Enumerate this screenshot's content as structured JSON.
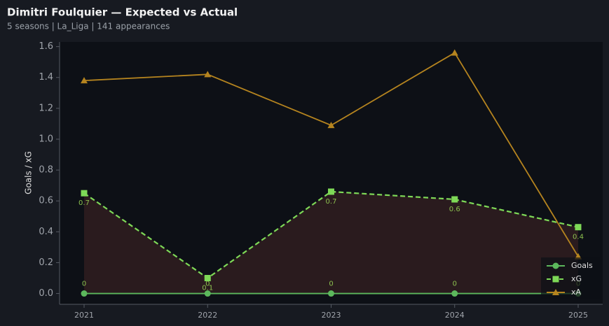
{
  "chart_data": {
    "type": "line",
    "title": "Dimitri Foulquier — Expected vs Actual",
    "subtitle": "5 seasons | La_Liga | 141 appearances",
    "y_label": "Goals / xG",
    "categories": [
      "2021",
      "2022",
      "2023",
      "2024",
      "2025"
    ],
    "series": [
      {
        "name": "Goals",
        "color": "#5cb85c",
        "marker": "circle",
        "dash": false,
        "values": [
          0,
          0,
          0,
          0,
          0
        ]
      },
      {
        "name": "xG",
        "color": "#7ed957",
        "marker": "square",
        "dash": true,
        "fill": "#2e1d1f",
        "values": [
          0.65,
          0.1,
          0.66,
          0.61,
          0.43
        ],
        "value_labels": [
          "0.7",
          "0.1",
          "0.7",
          "0.6",
          "0.4"
        ]
      },
      {
        "name": "xA",
        "color": "#b5841f",
        "marker": "triangle",
        "dash": false,
        "values": [
          1.38,
          1.42,
          1.09,
          1.56,
          0.24
        ]
      }
    ],
    "ylim": [
      -0.07,
      1.63
    ],
    "yticks": [
      {
        "value": 0,
        "label": "0.0"
      },
      0.2,
      0.4,
      0.6,
      0.8,
      {
        "value": 1,
        "label": "1.0"
      },
      1.2,
      1.4,
      1.6
    ],
    "legend": "lower right"
  }
}
